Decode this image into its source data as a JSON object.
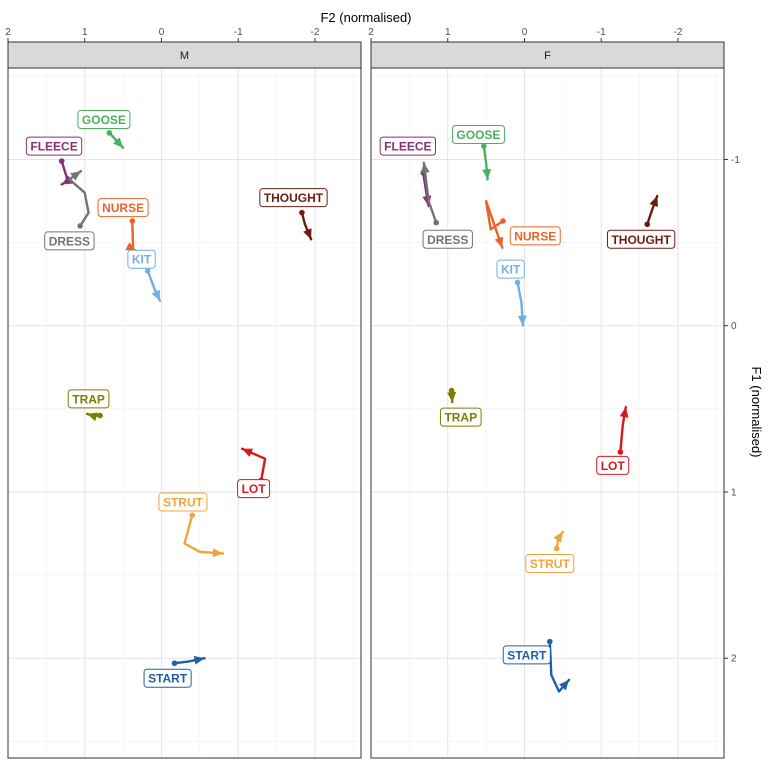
{
  "chart_data": {
    "type": "line",
    "subtype": "faceted vowel trajectory plot",
    "x_title": "F2 (normalised)",
    "y_title": "F1 (normalised)",
    "x_ticks": [
      "2",
      "1",
      "0",
      "-1",
      "-2"
    ],
    "x_tick_values": [
      2,
      1,
      0,
      -1,
      -2
    ],
    "y_ticks": [
      "-1",
      "0",
      "1",
      "2"
    ],
    "y_tick_values": [
      -1,
      0,
      1,
      2
    ],
    "xlim": [
      2.0,
      -2.6
    ],
    "ylim": [
      2.6,
      -1.55
    ],
    "x_reversed": true,
    "y_reversed": true,
    "grid": true,
    "facets": [
      {
        "name": "M",
        "vowels": [
          {
            "label": "GOOSE",
            "color": "#4daf5f",
            "points": [
              [
                0.68,
                -1.16
              ],
              [
                0.5,
                -1.07
              ]
            ],
            "label_pos": [
              0.75,
              -1.24
            ]
          },
          {
            "label": "FLEECE",
            "color": "#8b2f73",
            "points": [
              [
                1.3,
                -0.99
              ],
              [
                1.22,
                -0.87
              ],
              [
                1.3,
                -0.85
              ]
            ],
            "label_pos": [
              1.4,
              -1.08
            ]
          },
          {
            "label": "DRESS",
            "color": "#737373",
            "points": [
              [
                1.06,
                -0.6
              ],
              [
                0.95,
                -0.68
              ],
              [
                1.0,
                -0.8
              ],
              [
                1.2,
                -0.88
              ],
              [
                1.05,
                -0.93
              ]
            ],
            "label_pos": [
              1.2,
              -0.51
            ]
          },
          {
            "label": "NURSE",
            "color": "#e8642a",
            "points": [
              [
                0.38,
                -0.63
              ],
              [
                0.37,
                -0.46
              ],
              [
                0.33,
                -0.45
              ]
            ],
            "label_pos": [
              0.5,
              -0.71
            ]
          },
          {
            "label": "THOUGHT",
            "color": "#6e1c10",
            "points": [
              [
                -1.83,
                -0.68
              ],
              [
                -1.87,
                -0.61
              ],
              [
                -1.95,
                -0.52
              ]
            ],
            "label_pos": [
              -1.72,
              -0.77
            ]
          },
          {
            "label": "KIT",
            "color": "#74aee0",
            "points": [
              [
                0.18,
                -0.33
              ],
              [
                0.09,
                -0.22
              ],
              [
                0.02,
                -0.15
              ]
            ],
            "label_pos": [
              0.26,
              -0.4
            ]
          },
          {
            "label": "TRAP",
            "color": "#7d7d00",
            "points": [
              [
                0.8,
                0.54
              ],
              [
                0.9,
                0.54
              ],
              [
                0.97,
                0.53
              ]
            ],
            "label_pos": [
              0.95,
              0.44
            ]
          },
          {
            "label": "LOT",
            "color": "#d7191c",
            "points": [
              [
                -1.3,
                0.93
              ],
              [
                -1.35,
                0.8
              ],
              [
                -1.15,
                0.76
              ],
              [
                -1.05,
                0.74
              ]
            ],
            "label_pos": [
              -1.2,
              0.98
            ]
          },
          {
            "label": "STRUT",
            "color": "#f2a43a",
            "points": [
              [
                -0.4,
                1.14
              ],
              [
                -0.3,
                1.31
              ],
              [
                -0.5,
                1.36
              ],
              [
                -0.8,
                1.37
              ]
            ],
            "label_pos": [
              -0.28,
              1.06
            ]
          },
          {
            "label": "START",
            "color": "#1f5fa8",
            "points": [
              [
                -0.17,
                2.03
              ],
              [
                -0.35,
                2.02
              ],
              [
                -0.56,
                2.0
              ]
            ],
            "label_pos": [
              -0.08,
              2.12
            ]
          }
        ]
      },
      {
        "name": "F",
        "vowels": [
          {
            "label": "GOOSE",
            "color": "#4daf5f",
            "points": [
              [
                0.53,
                -1.08
              ],
              [
                0.5,
                -0.98
              ],
              [
                0.48,
                -0.88
              ]
            ],
            "label_pos": [
              0.6,
              -1.15
            ]
          },
          {
            "label": "FLEECE",
            "color": "#8b2f73",
            "points": [
              [
                1.32,
                -0.92
              ],
              [
                1.28,
                -0.8
              ],
              [
                1.25,
                -0.72
              ]
            ],
            "label_pos": [
              1.52,
              -1.08
            ]
          },
          {
            "label": "DRESS",
            "color": "#737373",
            "points": [
              [
                1.15,
                -0.62
              ],
              [
                1.25,
                -0.75
              ],
              [
                1.31,
                -0.98
              ]
            ],
            "label_pos": [
              1.0,
              -0.52
            ]
          },
          {
            "label": "NURSE",
            "color": "#e8642a",
            "points": [
              [
                0.28,
                -0.63
              ],
              [
                0.44,
                -0.58
              ],
              [
                0.5,
                -0.75
              ],
              [
                0.35,
                -0.55
              ],
              [
                0.29,
                -0.47
              ]
            ],
            "label_pos": [
              -0.14,
              -0.54
            ]
          },
          {
            "label": "THOUGHT",
            "color": "#6e1c10",
            "points": [
              [
                -1.6,
                -0.61
              ],
              [
                -1.65,
                -0.68
              ],
              [
                -1.73,
                -0.78
              ]
            ],
            "label_pos": [
              -1.52,
              -0.52
            ]
          },
          {
            "label": "KIT",
            "color": "#74aee0",
            "points": [
              [
                0.09,
                -0.26
              ],
              [
                0.04,
                -0.14
              ],
              [
                0.02,
                0.0
              ]
            ],
            "label_pos": [
              0.18,
              -0.34
            ]
          },
          {
            "label": "TRAP",
            "color": "#7d7d00",
            "points": [
              [
                0.95,
                0.39
              ],
              [
                0.94,
                0.46
              ]
            ],
            "label_pos": [
              0.83,
              0.55
            ]
          },
          {
            "label": "LOT",
            "color": "#d7191c",
            "points": [
              [
                -1.25,
                0.76
              ],
              [
                -1.28,
                0.6
              ],
              [
                -1.32,
                0.49
              ]
            ],
            "label_pos": [
              -1.15,
              0.84
            ]
          },
          {
            "label": "STRUT",
            "color": "#f2a43a",
            "points": [
              [
                -0.42,
                1.34
              ],
              [
                -0.44,
                1.28
              ],
              [
                -0.5,
                1.24
              ]
            ],
            "label_pos": [
              -0.33,
              1.43
            ]
          },
          {
            "label": "START",
            "color": "#1f5fa8",
            "points": [
              [
                -0.33,
                1.9
              ],
              [
                -0.35,
                2.1
              ],
              [
                -0.45,
                2.2
              ],
              [
                -0.58,
                2.13
              ]
            ],
            "label_pos": [
              -0.03,
              1.98
            ]
          }
        ]
      }
    ]
  }
}
